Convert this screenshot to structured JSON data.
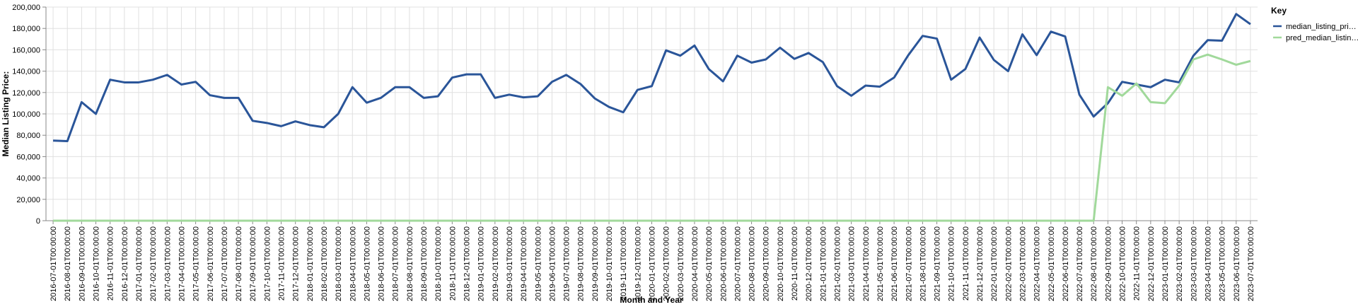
{
  "chart_data": {
    "type": "line",
    "x_label": "Month and Year",
    "y_label": "Median Listing Price:",
    "legend_title": "Key",
    "grid": true,
    "ylim": [
      0,
      200000
    ],
    "yticks": [
      0,
      {
        "value": 20000,
        "label": "20,000"
      },
      {
        "value": 40000,
        "label": "40,000"
      },
      {
        "value": 60000,
        "label": "60,000"
      },
      {
        "value": 80000,
        "label": "80,000"
      },
      {
        "value": 100000,
        "label": "100,000"
      },
      {
        "value": 120000,
        "label": "120,000"
      },
      {
        "value": 140000,
        "label": "140,000"
      },
      {
        "value": 160000,
        "label": "160,000"
      },
      {
        "value": 180000,
        "label": "180,000"
      },
      {
        "value": 200000,
        "label": "200,000"
      }
    ],
    "categories": [
      "2016-07-01T00:00:00",
      "2016-08-01T00:00:00",
      "2016-09-01T00:00:00",
      "2016-10-01T00:00:00",
      "2016-11-01T00:00:00",
      "2016-12-01T00:00:00",
      "2017-01-01T00:00:00",
      "2017-02-01T00:00:00",
      "2017-03-01T00:00:00",
      "2017-04-01T00:00:00",
      "2017-05-01T00:00:00",
      "2017-06-01T00:00:00",
      "2017-07-01T00:00:00",
      "2017-08-01T00:00:00",
      "2017-09-01T00:00:00",
      "2017-10-01T00:00:00",
      "2017-11-01T00:00:00",
      "2017-12-01T00:00:00",
      "2018-01-01T00:00:00",
      "2018-02-01T00:00:00",
      "2018-03-01T00:00:00",
      "2018-04-01T00:00:00",
      "2018-05-01T00:00:00",
      "2018-06-01T00:00:00",
      "2018-07-01T00:00:00",
      "2018-08-01T00:00:00",
      "2018-09-01T00:00:00",
      "2018-10-01T00:00:00",
      "2018-11-01T00:00:00",
      "2018-12-01T00:00:00",
      "2019-01-01T00:00:00",
      "2019-02-01T00:00:00",
      "2019-03-01T00:00:00",
      "2019-04-01T00:00:00",
      "2019-05-01T00:00:00",
      "2019-06-01T00:00:00",
      "2019-07-01T00:00:00",
      "2019-08-01T00:00:00",
      "2019-09-01T00:00:00",
      "2019-10-01T00:00:00",
      "2019-11-01T00:00:00",
      "2019-12-01T00:00:00",
      "2020-01-01T00:00:00",
      "2020-02-01T00:00:00",
      "2020-03-01T00:00:00",
      "2020-04-01T00:00:00",
      "2020-05-01T00:00:00",
      "2020-06-01T00:00:00",
      "2020-07-01T00:00:00",
      "2020-08-01T00:00:00",
      "2020-09-01T00:00:00",
      "2020-10-01T00:00:00",
      "2020-11-01T00:00:00",
      "2020-12-01T00:00:00",
      "2021-01-01T00:00:00",
      "2021-02-01T00:00:00",
      "2021-03-01T00:00:00",
      "2021-04-01T00:00:00",
      "2021-05-01T00:00:00",
      "2021-06-01T00:00:00",
      "2021-07-01T00:00:00",
      "2021-08-01T00:00:00",
      "2021-09-01T00:00:00",
      "2021-10-01T00:00:00",
      "2021-11-01T00:00:00",
      "2021-12-01T00:00:00",
      "2022-01-01T00:00:00",
      "2022-02-01T00:00:00",
      "2022-03-01T00:00:00",
      "2022-04-01T00:00:00",
      "2022-05-01T00:00:00",
      "2022-06-01T00:00:00",
      "2022-07-01T00:00:00",
      "2022-08-01T00:00:00",
      "2022-09-01T00:00:00",
      "2022-10-01T00:00:00",
      "2022-11-01T00:00:00",
      "2022-12-01T00:00:00",
      "2023-01-01T00:00:00",
      "2023-02-01T00:00:00",
      "2023-03-01T00:00:00",
      "2023-04-01T00:00:00",
      "2023-05-01T00:00:00",
      "2023-06-01T00:00:00",
      "2023-07-01T00:00:00"
    ],
    "series": [
      {
        "name": "median_listing_pri…",
        "color": "#2a5599",
        "values": [
          75000,
          74500,
          111000,
          100000,
          132000,
          129500,
          129500,
          132000,
          136500,
          127500,
          130000,
          117500,
          115000,
          115000,
          93500,
          91500,
          88500,
          93000,
          89500,
          87500,
          100000,
          125000,
          110500,
          115000,
          125000,
          125000,
          115000,
          116500,
          134000,
          137000,
          137000,
          115000,
          118000,
          115500,
          116500,
          130000,
          136500,
          128000,
          114500,
          106500,
          101500,
          122500,
          126000,
          159500,
          154500,
          164000,
          142000,
          130500,
          154500,
          148000,
          151000,
          162000,
          151500,
          157000,
          148500,
          126000,
          117000,
          126500,
          125500,
          134000,
          155000,
          173000,
          170500,
          132000,
          142000,
          171500,
          150500,
          140000,
          174500,
          155000,
          177000,
          172500,
          118000,
          97500,
          110000,
          130000,
          127500,
          125000,
          132000,
          129500,
          154500,
          169000,
          168500,
          193500,
          184000
        ]
      },
      {
        "name": "pred_median_listin…",
        "color": "#a1d99b",
        "values": [
          0,
          0,
          0,
          0,
          0,
          0,
          0,
          0,
          0,
          0,
          0,
          0,
          0,
          0,
          0,
          0,
          0,
          0,
          0,
          0,
          0,
          0,
          0,
          0,
          0,
          0,
          0,
          0,
          0,
          0,
          0,
          0,
          0,
          0,
          0,
          0,
          0,
          0,
          0,
          0,
          0,
          0,
          0,
          0,
          0,
          0,
          0,
          0,
          0,
          0,
          0,
          0,
          0,
          0,
          0,
          0,
          0,
          0,
          0,
          0,
          0,
          0,
          0,
          0,
          0,
          0,
          0,
          0,
          0,
          0,
          0,
          0,
          0,
          0,
          125000,
          117000,
          128500,
          111000,
          110000,
          126500,
          151000,
          155500,
          151000,
          146000,
          149500
        ]
      }
    ]
  }
}
